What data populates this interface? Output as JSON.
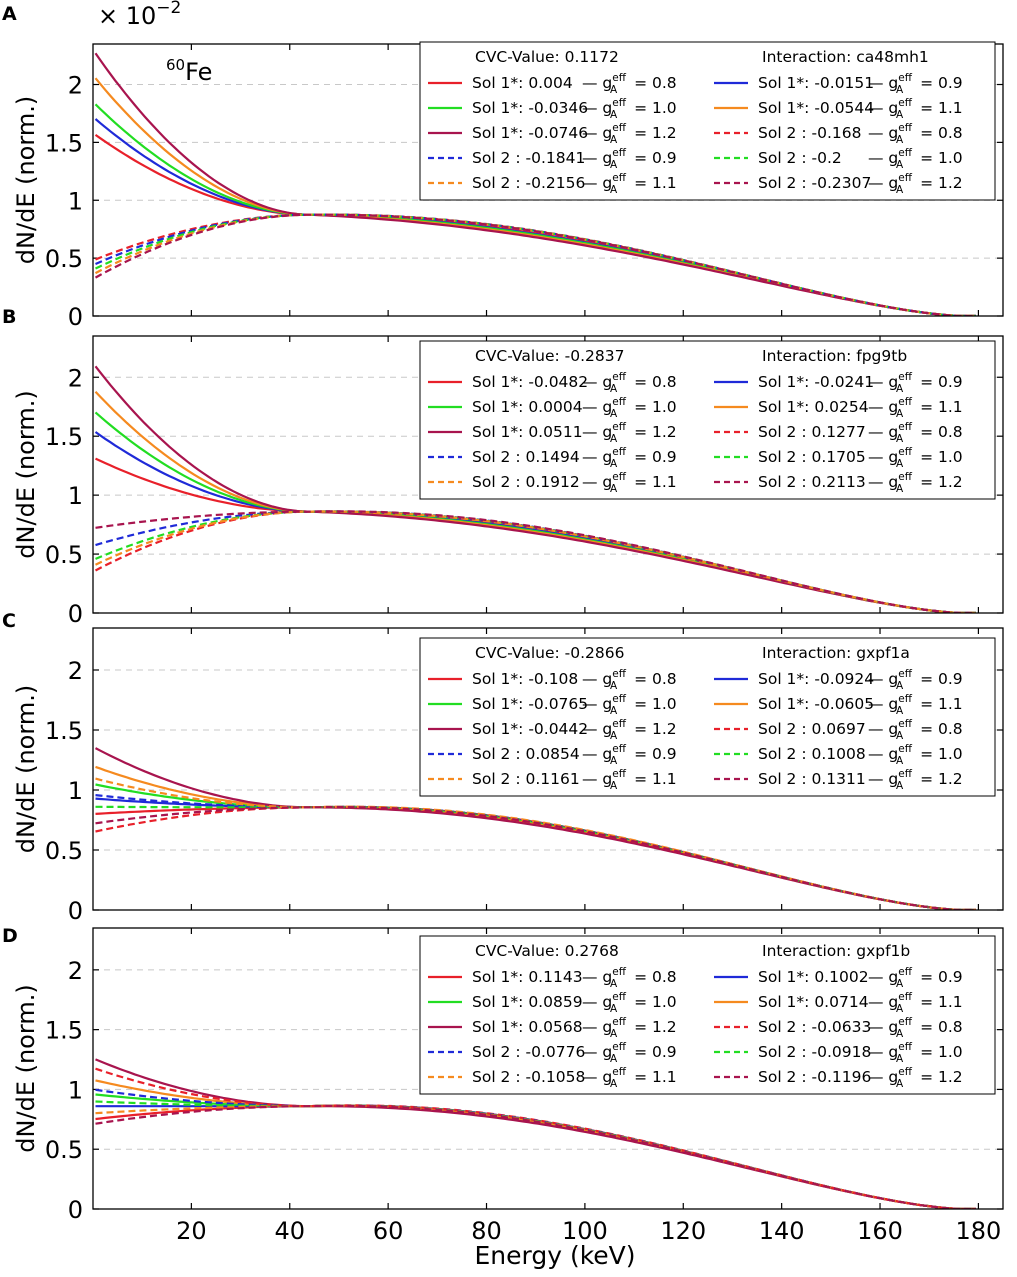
{
  "figure": {
    "multiplier": "× 10",
    "multiplier_exp": "−2",
    "nuclide_mass": "60",
    "nuclide_symbol": "Fe",
    "ylabel": "dN/dE (norm.)",
    "xlabel": "Energy (keV)",
    "cvc_label": "CVC-Value:",
    "interaction_label": "Interaction:",
    "g_symbol": "g",
    "g_sup": "eff",
    "g_sub": "A",
    "series_style": [
      {
        "color": "#e8202a",
        "dash": false
      },
      {
        "color": "#1f2ad8",
        "dash": false
      },
      {
        "color": "#22dd22",
        "dash": false
      },
      {
        "color": "#f58a1f",
        "dash": false
      },
      {
        "color": "#a8144e",
        "dash": false
      },
      {
        "color": "#e8202a",
        "dash": true
      },
      {
        "color": "#1f2ad8",
        "dash": true
      },
      {
        "color": "#22dd22",
        "dash": true
      },
      {
        "color": "#f58a1f",
        "dash": true
      },
      {
        "color": "#a8144e",
        "dash": true
      }
    ]
  },
  "chart_data": [
    {
      "type": "line",
      "panel": "A",
      "cvc_value": "0.1172",
      "interaction": "ca48mh1",
      "xlim": [
        0,
        185
      ],
      "ylim": [
        0,
        2.35
      ],
      "xticks": [
        20,
        40,
        60,
        80,
        100,
        120,
        140,
        160,
        180
      ],
      "yticks": [
        0,
        0.5,
        1,
        1.5,
        2
      ],
      "ytick_labels": [
        "0",
        "0.5",
        "1",
        "1.5",
        "2"
      ],
      "cross_point": [
        44,
        0.875
      ],
      "series": [
        {
          "sol": "Sol 1*:",
          "sol_value": "0.004",
          "ga": "0.8",
          "start": 1.58
        },
        {
          "sol": "Sol 1*:",
          "sol_value": "-0.0151",
          "ga": "0.9",
          "start": 1.72
        },
        {
          "sol": "Sol 1*:",
          "sol_value": "-0.0346",
          "ga": "1.0",
          "start": 1.85
        },
        {
          "sol": "Sol 1*:",
          "sol_value": "-0.0544",
          "ga": "1.1",
          "start": 2.08
        },
        {
          "sol": "Sol 1*:",
          "sol_value": "-0.0746",
          "ga": "1.2",
          "start": 2.3
        },
        {
          "sol": "Sol 2 :",
          "sol_value": "-0.168",
          "ga": "0.8",
          "start": 0.48
        },
        {
          "sol": "Sol 2 :",
          "sol_value": "-0.1841",
          "ga": "0.9",
          "start": 0.44
        },
        {
          "sol": "Sol 2 :",
          "sol_value": "-0.2",
          "ga": "1.0",
          "start": 0.4
        },
        {
          "sol": "Sol 2 :",
          "sol_value": "-0.2156",
          "ga": "1.1",
          "start": 0.36
        },
        {
          "sol": "Sol 2 :",
          "sol_value": "-0.2307",
          "ga": "1.2",
          "start": 0.32
        }
      ]
    },
    {
      "type": "line",
      "panel": "B",
      "cvc_value": "-0.2837",
      "interaction": "fpg9tb",
      "xlim": [
        0,
        185
      ],
      "ylim": [
        0,
        2.35
      ],
      "xticks": [
        20,
        40,
        60,
        80,
        100,
        120,
        140,
        160,
        180
      ],
      "yticks": [
        0,
        0.5,
        1,
        1.5,
        2
      ],
      "ytick_labels": [
        "0",
        "0.5",
        "1",
        "1.5",
        "2"
      ],
      "cross_point": [
        44,
        0.86
      ],
      "series": [
        {
          "sol": "Sol 1*:",
          "sol_value": "-0.0482",
          "ga": "0.8",
          "start": 1.32
        },
        {
          "sol": "Sol 1*:",
          "sol_value": "-0.0241",
          "ga": "0.9",
          "start": 1.55
        },
        {
          "sol": "Sol 1*:",
          "sol_value": "0.0004",
          "ga": "1.0",
          "start": 1.72
        },
        {
          "sol": "Sol 1*:",
          "sol_value": "0.0254",
          "ga": "1.1",
          "start": 1.9
        },
        {
          "sol": "Sol 1*:",
          "sol_value": "0.0511",
          "ga": "1.2",
          "start": 2.12
        },
        {
          "sol": "Sol 2 :",
          "sol_value": "0.1277",
          "ga": "0.8",
          "start": 0.35
        },
        {
          "sol": "Sol 2 :",
          "sol_value": "0.1494",
          "ga": "0.9",
          "start": 0.57
        },
        {
          "sol": "Sol 2 :",
          "sol_value": "0.1705",
          "ga": "1.0",
          "start": 0.45
        },
        {
          "sol": "Sol 2 :",
          "sol_value": "0.1912",
          "ga": "1.1",
          "start": 0.4
        },
        {
          "sol": "Sol 2 :",
          "sol_value": "0.2113",
          "ga": "1.2",
          "start": 0.72
        }
      ]
    },
    {
      "type": "line",
      "panel": "C",
      "cvc_value": "-0.2866",
      "interaction": "gxpf1a",
      "xlim": [
        0,
        185
      ],
      "ylim": [
        0,
        2.35
      ],
      "xticks": [
        20,
        40,
        60,
        80,
        100,
        120,
        140,
        160,
        180
      ],
      "yticks": [
        0,
        0.5,
        1,
        1.5,
        2
      ],
      "ytick_labels": [
        "0",
        "0.5",
        "1",
        "1.5",
        "2"
      ],
      "cross_point": [
        44,
        0.855
      ],
      "series": [
        {
          "sol": "Sol 1*:",
          "sol_value": "-0.108",
          "ga": "0.8",
          "start": 0.8
        },
        {
          "sol": "Sol 1*:",
          "sol_value": "-0.0924",
          "ga": "0.9",
          "start": 0.93
        },
        {
          "sol": "Sol 1*:",
          "sol_value": "-0.0765",
          "ga": "1.0",
          "start": 1.05
        },
        {
          "sol": "Sol 1*:",
          "sol_value": "-0.0605",
          "ga": "1.1",
          "start": 1.2
        },
        {
          "sol": "Sol 1*:",
          "sol_value": "-0.0442",
          "ga": "1.2",
          "start": 1.36
        },
        {
          "sol": "Sol 2 :",
          "sol_value": "0.0697",
          "ga": "0.8",
          "start": 0.65
        },
        {
          "sol": "Sol 2 :",
          "sol_value": "0.0854",
          "ga": "0.9",
          "start": 0.96
        },
        {
          "sol": "Sol 2 :",
          "sol_value": "0.1008",
          "ga": "1.0",
          "start": 0.86
        },
        {
          "sol": "Sol 2 :",
          "sol_value": "0.1161",
          "ga": "1.1",
          "start": 1.1
        },
        {
          "sol": "Sol 2 :",
          "sol_value": "0.1311",
          "ga": "1.2",
          "start": 0.72
        }
      ]
    },
    {
      "type": "line",
      "panel": "D",
      "cvc_value": "0.2768",
      "interaction": "gxpf1b",
      "xlim": [
        0,
        185
      ],
      "ylim": [
        0,
        2.35
      ],
      "xticks": [
        20,
        40,
        60,
        80,
        100,
        120,
        140,
        160,
        180
      ],
      "xtick_labels": [
        "20",
        "40",
        "60",
        "80",
        "100",
        "120",
        "140",
        "160",
        "180"
      ],
      "yticks": [
        0,
        0.5,
        1,
        1.5,
        2
      ],
      "ytick_labels": [
        "0",
        "0.5",
        "1",
        "1.5",
        "2"
      ],
      "cross_point": [
        44,
        0.86
      ],
      "series": [
        {
          "sol": "Sol 1*:",
          "sol_value": "0.1143",
          "ga": "0.8",
          "start": 0.75
        },
        {
          "sol": "Sol 1*:",
          "sol_value": "0.1002",
          "ga": "0.9",
          "start": 0.86
        },
        {
          "sol": "Sol 1*:",
          "sol_value": "0.0859",
          "ga": "1.0",
          "start": 0.96
        },
        {
          "sol": "Sol 1*:",
          "sol_value": "0.0714",
          "ga": "1.1",
          "start": 1.08
        },
        {
          "sol": "Sol 1*:",
          "sol_value": "0.0568",
          "ga": "1.2",
          "start": 1.26
        },
        {
          "sol": "Sol 2 :",
          "sol_value": "-0.0633",
          "ga": "0.8",
          "start": 1.18
        },
        {
          "sol": "Sol 2 :",
          "sol_value": "-0.0776",
          "ga": "0.9",
          "start": 1.0
        },
        {
          "sol": "Sol 2 :",
          "sol_value": "-0.0918",
          "ga": "1.0",
          "start": 0.9
        },
        {
          "sol": "Sol 2 :",
          "sol_value": "-0.1058",
          "ga": "1.1",
          "start": 0.8
        },
        {
          "sol": "Sol 2 :",
          "sol_value": "-0.1196",
          "ga": "1.2",
          "start": 0.71
        }
      ]
    }
  ]
}
